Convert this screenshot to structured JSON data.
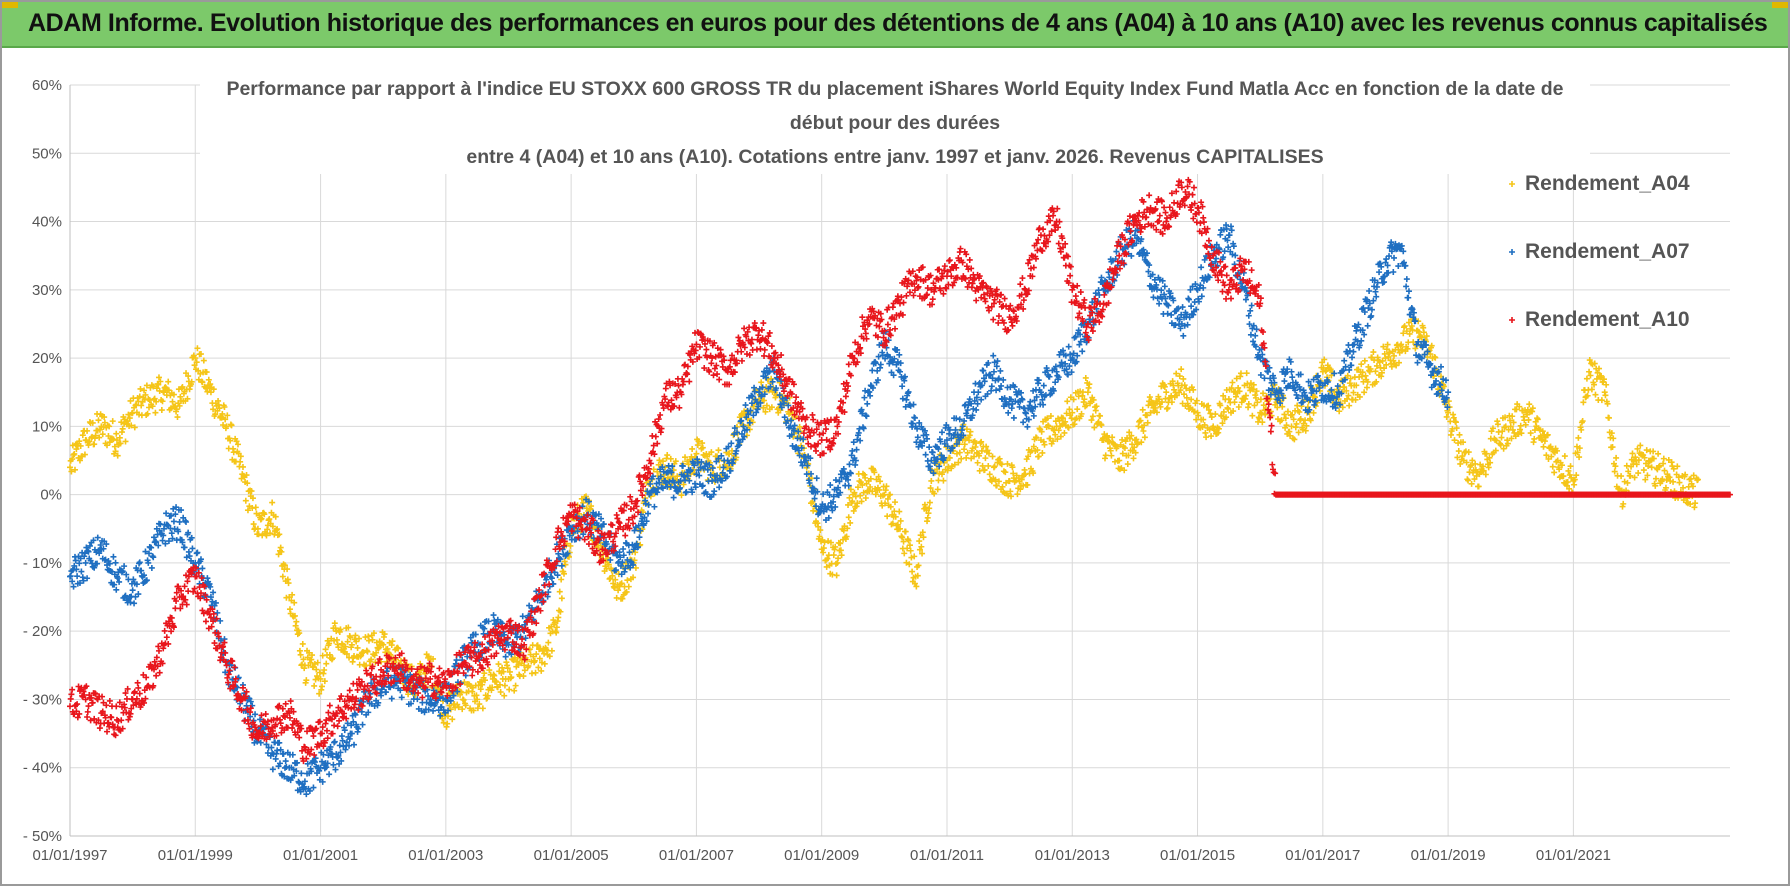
{
  "header": {
    "banner_title": "ADAM Informe. Evolution historique des performances en euros pour des détentions de 4 ans (A04) à 10 ans (A10) avec les revenus connus capitalisés"
  },
  "colors": {
    "banner_bg": "#7cc96a",
    "a04": "#f5c518",
    "a07": "#1f6fc1",
    "a10": "#e8161c"
  },
  "chart_data": {
    "type": "scatter",
    "title_lines": [
      "Performance par rapport à l'indice EU STOXX 600 GROSS TR  du placement iShares World Equity Index Fund Matla Acc en fonction de la date de",
      "début pour des durées",
      "entre 4 (A04) et 10 ans (A10).  Cotations entre janv. 1997 et janv. 2026. Revenus CAPITALISES"
    ],
    "xlabel": "",
    "ylabel": "",
    "xlim": [
      1997.0,
      2023.5
    ],
    "ylim": [
      -50,
      60
    ],
    "grid": true,
    "legend_position": "top-right",
    "y_ticks": [
      {
        "value": 60,
        "label": "60%"
      },
      {
        "value": 50,
        "label": "50%"
      },
      {
        "value": 40,
        "label": "40%"
      },
      {
        "value": 30,
        "label": "30%"
      },
      {
        "value": 20,
        "label": "20%"
      },
      {
        "value": 10,
        "label": "10%"
      },
      {
        "value": 0,
        "label": "0%"
      },
      {
        "value": -10,
        "label": "- 10%"
      },
      {
        "value": -20,
        "label": "- 20%"
      },
      {
        "value": -30,
        "label": "- 30%"
      },
      {
        "value": -40,
        "label": "- 40%"
      },
      {
        "value": -50,
        "label": "- 50%"
      }
    ],
    "x_ticks": [
      {
        "value": 1997,
        "label": "01/01/1997"
      },
      {
        "value": 1999,
        "label": "01/01/1999"
      },
      {
        "value": 2001,
        "label": "01/01/2001"
      },
      {
        "value": 2003,
        "label": "01/01/2003"
      },
      {
        "value": 2005,
        "label": "01/01/2005"
      },
      {
        "value": 2007,
        "label": "01/01/2007"
      },
      {
        "value": 2009,
        "label": "01/01/2009"
      },
      {
        "value": 2011,
        "label": "01/01/2011"
      },
      {
        "value": 2013,
        "label": "01/01/2013"
      },
      {
        "value": 2015,
        "label": "01/01/2015"
      },
      {
        "value": 2017,
        "label": "01/01/2017"
      },
      {
        "value": 2019,
        "label": "01/01/2019"
      },
      {
        "value": 2021,
        "label": "01/01/2021"
      }
    ],
    "series": [
      {
        "name": "Rendement_A04",
        "color": "#f5c518",
        "x": [
          1997.0,
          1997.25,
          1997.5,
          1997.75,
          1998.0,
          1998.25,
          1998.5,
          1998.75,
          1999.0,
          1999.25,
          1999.5,
          1999.75,
          2000.0,
          2000.25,
          2000.5,
          2000.75,
          2001.0,
          2001.25,
          2001.5,
          2001.75,
          2002.0,
          2002.25,
          2002.5,
          2002.75,
          2003.0,
          2003.25,
          2003.5,
          2003.75,
          2004.0,
          2004.25,
          2004.5,
          2004.75,
          2005.0,
          2005.25,
          2005.5,
          2005.75,
          2006.0,
          2006.25,
          2006.5,
          2006.75,
          2007.0,
          2007.25,
          2007.5,
          2007.75,
          2008.0,
          2008.25,
          2008.5,
          2008.75,
          2009.0,
          2009.25,
          2009.5,
          2009.75,
          2010.0,
          2010.25,
          2010.5,
          2010.75,
          2011.0,
          2011.25,
          2011.5,
          2011.75,
          2012.0,
          2012.25,
          2012.5,
          2012.75,
          2013.0,
          2013.25,
          2013.5,
          2013.75,
          2014.0,
          2014.25,
          2014.5,
          2014.75,
          2015.0,
          2015.25,
          2015.5,
          2015.75,
          2016.0,
          2016.25,
          2016.5,
          2016.75,
          2017.0,
          2017.25,
          2017.5,
          2017.75,
          2018.0,
          2018.25,
          2018.5,
          2018.75,
          2019.0,
          2019.25,
          2019.5,
          2019.75,
          2020.0,
          2020.25,
          2020.5,
          2020.75,
          2021.0,
          2021.25,
          2021.5,
          2021.75,
          2022.0,
          2022.25,
          2022.5,
          2022.75,
          2023.0
        ],
        "values": [
          4,
          8,
          10,
          8,
          12,
          14,
          15,
          13,
          20,
          15,
          10,
          3,
          -5,
          -3,
          -15,
          -25,
          -27,
          -20,
          -22,
          -23,
          -22,
          -25,
          -28,
          -25,
          -32,
          -29,
          -30,
          -27,
          -27,
          -25,
          -24,
          -20,
          -5,
          -2,
          -8,
          -14,
          -10,
          2,
          4,
          2,
          6,
          4,
          5,
          10,
          14,
          15,
          12,
          5,
          -8,
          -10,
          0,
          2,
          0,
          -5,
          -12,
          2,
          5,
          8,
          6,
          4,
          2,
          3,
          8,
          10,
          12,
          15,
          8,
          5,
          8,
          12,
          15,
          16,
          12,
          10,
          14,
          16,
          12,
          14,
          10,
          12,
          18,
          14,
          16,
          18,
          20,
          22,
          24,
          20,
          12,
          5,
          3,
          8,
          10,
          12,
          8,
          5,
          2,
          18,
          15,
          0,
          5,
          4,
          3,
          1,
          0
        ]
      },
      {
        "name": "Rendement_A07",
        "color": "#1f6fc1",
        "x": [
          1997.0,
          1997.25,
          1997.5,
          1997.75,
          1998.0,
          1998.25,
          1998.5,
          1998.75,
          1999.0,
          1999.25,
          1999.5,
          1999.75,
          2000.0,
          2000.25,
          2000.5,
          2000.75,
          2001.0,
          2001.25,
          2001.5,
          2001.75,
          2002.0,
          2002.25,
          2002.5,
          2002.75,
          2003.0,
          2003.25,
          2003.5,
          2003.75,
          2004.0,
          2004.25,
          2004.5,
          2004.75,
          2005.0,
          2005.25,
          2005.5,
          2005.75,
          2006.0,
          2006.25,
          2006.5,
          2006.75,
          2007.0,
          2007.25,
          2007.5,
          2007.75,
          2008.0,
          2008.25,
          2008.5,
          2008.75,
          2009.0,
          2009.25,
          2009.5,
          2009.75,
          2010.0,
          2010.25,
          2010.5,
          2010.75,
          2011.0,
          2011.25,
          2011.5,
          2011.75,
          2012.0,
          2012.25,
          2012.5,
          2012.75,
          2013.0,
          2013.25,
          2013.5,
          2013.75,
          2014.0,
          2014.25,
          2014.5,
          2014.75,
          2015.0,
          2015.25,
          2015.5,
          2015.75,
          2016.0,
          2016.25,
          2016.5,
          2016.75,
          2017.0,
          2017.25,
          2017.5,
          2017.75,
          2018.0,
          2018.25,
          2018.5,
          2018.75,
          2019.0
        ],
        "values": [
          -12,
          -10,
          -8,
          -12,
          -14,
          -10,
          -5,
          -4,
          -10,
          -15,
          -25,
          -30,
          -35,
          -38,
          -40,
          -42,
          -40,
          -38,
          -35,
          -30,
          -28,
          -27,
          -29,
          -30,
          -30,
          -25,
          -22,
          -20,
          -22,
          -20,
          -15,
          -10,
          -5,
          -3,
          -6,
          -10,
          -8,
          0,
          2,
          2,
          3,
          2,
          5,
          10,
          15,
          18,
          10,
          5,
          -2,
          0,
          5,
          15,
          22,
          18,
          10,
          5,
          8,
          10,
          15,
          18,
          14,
          12,
          15,
          18,
          20,
          25,
          30,
          35,
          38,
          32,
          28,
          25,
          30,
          35,
          38,
          30,
          20,
          15,
          18,
          14,
          16,
          15,
          22,
          28,
          34,
          36,
          22,
          18,
          15
        ]
      },
      {
        "name": "Rendement_A10",
        "color": "#e8161c",
        "x": [
          1997.0,
          1997.25,
          1997.5,
          1997.75,
          1998.0,
          1998.25,
          1998.5,
          1998.75,
          1999.0,
          1999.25,
          1999.5,
          1999.75,
          2000.0,
          2000.25,
          2000.5,
          2000.75,
          2001.0,
          2001.25,
          2001.5,
          2001.75,
          2002.0,
          2002.25,
          2002.5,
          2002.75,
          2003.0,
          2003.25,
          2003.5,
          2003.75,
          2004.0,
          2004.25,
          2004.5,
          2004.75,
          2005.0,
          2005.25,
          2005.5,
          2005.75,
          2006.0,
          2006.25,
          2006.5,
          2006.75,
          2007.0,
          2007.25,
          2007.5,
          2007.75,
          2008.0,
          2008.25,
          2008.5,
          2008.75,
          2009.0,
          2009.25,
          2009.5,
          2009.75,
          2010.0,
          2010.25,
          2010.5,
          2010.75,
          2011.0,
          2011.25,
          2011.5,
          2011.75,
          2012.0,
          2012.25,
          2012.5,
          2012.75,
          2013.0,
          2013.25,
          2013.5,
          2013.75,
          2014.0,
          2014.25,
          2014.5,
          2014.75,
          2015.0,
          2015.25,
          2015.5,
          2015.75,
          2016.0,
          2016.25,
          2016.5,
          2016.75,
          2017.0,
          2017.25,
          2017.5,
          2017.75,
          2018.0,
          2018.25,
          2018.5,
          2018.75,
          2019.0,
          2019.25,
          2019.5,
          2019.75,
          2020.0,
          2020.25,
          2020.5,
          2020.75,
          2021.0,
          2021.25,
          2021.5,
          2021.75,
          2022.0,
          2022.25,
          2022.5,
          2022.75,
          2023.0,
          2023.25,
          2023.5
        ],
        "values": [
          -31,
          -30,
          -32,
          -33,
          -30,
          -28,
          -22,
          -15,
          -12,
          -18,
          -25,
          -30,
          -35,
          -33,
          -32,
          -37,
          -35,
          -32,
          -30,
          -28,
          -26,
          -25,
          -28,
          -27,
          -28,
          -25,
          -24,
          -22,
          -20,
          -22,
          -15,
          -8,
          -3,
          -5,
          -8,
          -5,
          -2,
          5,
          14,
          15,
          22,
          20,
          18,
          22,
          24,
          20,
          15,
          10,
          8,
          10,
          20,
          26,
          24,
          28,
          32,
          30,
          32,
          34,
          30,
          28,
          26,
          30,
          38,
          40,
          30,
          25,
          28,
          35,
          40,
          42,
          40,
          45,
          42,
          35,
          30,
          33,
          28,
          0,
          0,
          0,
          0,
          0,
          0,
          0,
          0,
          0,
          0,
          0,
          0,
          0,
          0,
          0,
          0,
          0,
          0,
          0,
          0,
          0,
          0,
          0,
          0,
          0,
          0,
          0,
          0,
          0,
          0
        ]
      }
    ]
  }
}
